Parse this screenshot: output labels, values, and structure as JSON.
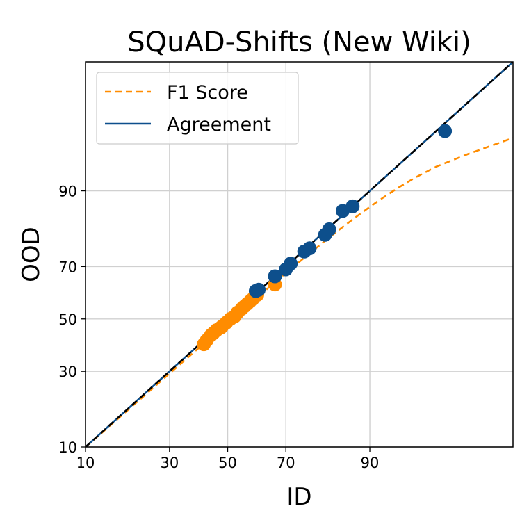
{
  "chart_data": {
    "type": "scatter",
    "title": "SQuAD-Shifts (New Wiki)",
    "xlabel": "ID",
    "ylabel": "OOD",
    "xlim": [
      10,
      100
    ],
    "ylim": [
      10,
      100
    ],
    "scale": "probit",
    "grid": true,
    "legend_position": "top-left",
    "xticks": [
      "10",
      "30",
      "50",
      "70",
      "90"
    ],
    "yticks": [
      "10",
      "30",
      "50",
      "70",
      "90"
    ],
    "xtick_values": [
      10,
      30,
      50,
      70,
      90
    ],
    "ytick_values": [
      10,
      30,
      50,
      70,
      90
    ],
    "reference_line": {
      "style": "dashed",
      "color": "#000000",
      "x": [
        10,
        100
      ],
      "y": [
        10,
        100
      ]
    },
    "series": [
      {
        "name": "F1 Score",
        "color": "#ff8c00",
        "style": "dashed",
        "fit_line": {
          "x": [
            10,
            100
          ],
          "y": [
            10,
            96.5
          ]
        },
        "points": [
          [
            41.5,
            40.0
          ],
          [
            42.5,
            41.5
          ],
          [
            44.0,
            43.5
          ],
          [
            45.0,
            44.5
          ],
          [
            46.0,
            45.5
          ],
          [
            47.5,
            46.5
          ],
          [
            48.0,
            47.0
          ],
          [
            49.5,
            48.5
          ],
          [
            51.0,
            50.0
          ],
          [
            52.5,
            51.0
          ],
          [
            53.5,
            52.5
          ],
          [
            55.0,
            54.0
          ],
          [
            56.0,
            55.0
          ],
          [
            57.0,
            56.0
          ],
          [
            58.0,
            57.0
          ],
          [
            59.0,
            58.0
          ],
          [
            60.5,
            59.5
          ],
          [
            66.5,
            63.5
          ]
        ]
      },
      {
        "name": "Agreement",
        "color": "#0d4f8c",
        "style": "solid",
        "fit_line": {
          "x": [
            10,
            100
          ],
          "y": [
            10,
            100
          ]
        },
        "points": [
          [
            60.0,
            61.0
          ],
          [
            61.0,
            61.5
          ],
          [
            66.5,
            66.5
          ],
          [
            70.0,
            69.0
          ],
          [
            71.5,
            71.0
          ],
          [
            75.5,
            75.0
          ],
          [
            77.0,
            76.0
          ],
          [
            81.0,
            80.0
          ],
          [
            82.0,
            81.5
          ],
          [
            85.0,
            86.0
          ],
          [
            87.0,
            87.0
          ],
          [
            97.5,
            97.0
          ]
        ]
      }
    ]
  }
}
